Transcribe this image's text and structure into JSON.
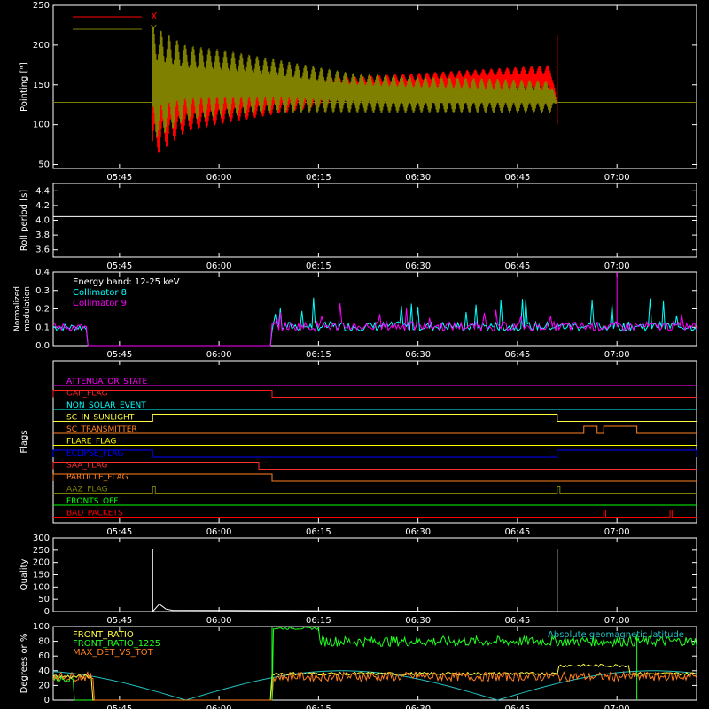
{
  "chart_data": [
    {
      "type": "line",
      "ylabel": "Pointing [\"]",
      "ylim": [
        45,
        250
      ],
      "yticks": [
        50,
        100,
        150,
        200,
        250
      ],
      "xlim": [
        "05:35",
        "07:12"
      ],
      "xticks": [
        "05:45",
        "06:00",
        "06:15",
        "06:30",
        "06:45",
        "07:00"
      ],
      "legend": "top-left",
      "series": [
        {
          "name": "X",
          "color": "#ff0000",
          "x": [
            "05:35",
            "05:50",
            "05:55",
            "06:00",
            "06:10",
            "06:20",
            "06:30",
            "06:40",
            "06:50",
            "06:51",
            "07:12"
          ],
          "low": [
            128,
            58,
            90,
            100,
            115,
            130,
            135,
            140,
            140,
            128,
            128
          ],
          "high": [
            128,
            200,
            170,
            165,
            160,
            160,
            165,
            170,
            175,
            128,
            128
          ]
        },
        {
          "name": "Y",
          "color": "#808000",
          "x": [
            "05:35",
            "05:50",
            "05:55",
            "06:00",
            "06:10",
            "06:20",
            "06:30",
            "06:40",
            "06:50",
            "06:51",
            "07:12"
          ],
          "low": [
            128,
            80,
            105,
            110,
            115,
            115,
            115,
            115,
            115,
            128,
            128
          ],
          "high": [
            128,
            225,
            200,
            195,
            180,
            165,
            160,
            158,
            155,
            128,
            128
          ]
        }
      ]
    },
    {
      "type": "line",
      "ylabel": "Roll period [s]",
      "ylim": [
        3.5,
        4.5
      ],
      "yticks": [
        "3.6",
        "3.8",
        "4.0",
        "4.2",
        "4.4"
      ],
      "xticks": [
        "05:45",
        "06:00",
        "06:15",
        "06:30",
        "06:45",
        "07:00"
      ],
      "series": [
        {
          "color": "#ffffff",
          "x": [
            "05:35",
            "07:12"
          ],
          "y": [
            4.05,
            4.05
          ]
        }
      ]
    },
    {
      "type": "line",
      "ylabel": "Normalized modulation",
      "ylim": [
        0,
        0.4
      ],
      "yticks": [
        "0.0",
        "0.1",
        "0.2",
        "0.3",
        "0.4"
      ],
      "xticks": [
        "05:45",
        "06:00",
        "06:15",
        "06:30",
        "06:45",
        "07:00"
      ],
      "annotation": "Energy band: 12-25 keV",
      "legend": "top-left",
      "series": [
        {
          "name": "Collimator 8",
          "color": "#00ffff",
          "level": 0.1,
          "gaps": [
            [
              "05:40",
              "06:08"
            ]
          ]
        },
        {
          "name": "Collimator 9",
          "color": "#ff00ff",
          "level": 0.1,
          "gaps": [
            [
              "05:40",
              "06:08"
            ]
          ]
        }
      ]
    },
    {
      "type": "line",
      "ylabel": "Flags",
      "xticks": [
        "05:45",
        "06:00",
        "06:15",
        "06:30",
        "06:45",
        "07:00"
      ],
      "flags": [
        {
          "name": "ATTENUATOR_STATE",
          "color": "#ff00ff",
          "segments": []
        },
        {
          "name": "GAP_FLAG",
          "color": "#ff2020",
          "segments": [
            [
              "05:35",
              "06:08"
            ]
          ]
        },
        {
          "name": "NON_SOLAR_EVENT",
          "color": "#00ffff",
          "segments": []
        },
        {
          "name": "SC_IN_SUNLIGHT",
          "color": "#ffff40",
          "segments": [
            [
              "05:50",
              "06:51"
            ]
          ]
        },
        {
          "name": "SC_TRANSMITTER",
          "color": "#ff8020",
          "segments": [
            [
              "06:55",
              "06:57"
            ],
            [
              "06:58",
              "07:03"
            ]
          ]
        },
        {
          "name": "FLARE_FLAG",
          "color": "#ffff00",
          "segments": []
        },
        {
          "name": "ECLIPSE_FLAG",
          "color": "#0000ff",
          "segments": [
            [
              "05:35",
              "05:50"
            ],
            [
              "06:51",
              "07:12"
            ]
          ]
        },
        {
          "name": "SAA_FLAG",
          "color": "#ff3030",
          "segments": [
            [
              "05:35",
              "06:06"
            ]
          ]
        },
        {
          "name": "PARTICLE_FLAG",
          "color": "#ff8020",
          "segments": [
            [
              "05:35",
              "06:08"
            ]
          ]
        },
        {
          "name": "AAZ_FLAG",
          "color": "#808000",
          "segments": [
            [
              "05:50",
              "05:50.4"
            ],
            [
              "06:51",
              "06:51.4"
            ]
          ]
        },
        {
          "name": "FRONTS_OFF",
          "color": "#00ff00",
          "segments": []
        },
        {
          "name": "BAD_PACKETS",
          "color": "#ff0000",
          "segments": [
            [
              "06:58",
              "06:58.3"
            ],
            [
              "07:08",
              "07:08.3"
            ]
          ]
        }
      ]
    },
    {
      "type": "line",
      "ylabel": "Quality",
      "ylim": [
        0,
        300
      ],
      "yticks": [
        0,
        50,
        100,
        150,
        200,
        250,
        300
      ],
      "xticks": [
        "05:45",
        "06:00",
        "06:15",
        "06:30",
        "06:45",
        "07:00"
      ],
      "series": [
        {
          "color": "#ffffff",
          "x": [
            "05:35",
            "05:50",
            "05:50",
            "05:51",
            "05:52",
            "05:53",
            "06:51",
            "06:51",
            "07:12"
          ],
          "y": [
            255,
            255,
            0,
            30,
            10,
            5,
            0,
            255,
            255
          ]
        }
      ]
    },
    {
      "type": "line",
      "ylabel": "Degrees or %",
      "ylim": [
        0,
        100
      ],
      "yticks": [
        0,
        20,
        40,
        60,
        80,
        100
      ],
      "xticks": [
        "05:45",
        "06:00",
        "06:15",
        "06:30",
        "06:45",
        "07:00"
      ],
      "legend": "top-left",
      "annotation": "Absolute geomagnetic latitude",
      "series": [
        {
          "name": "FRONT_RATIO",
          "color": "#ffff40"
        },
        {
          "name": "FRONT_RATIO_1225",
          "color": "#20ff20"
        },
        {
          "name": "MAX_DET_VS_TOT",
          "color": "#ff8020"
        },
        {
          "name": "",
          "color": "#20c0c0"
        }
      ]
    }
  ],
  "labels": {
    "legend_x": "X",
    "legend_y": "Y",
    "mod_band": "Energy band: 12-25 keV",
    "mod_c8": "Collimator 8",
    "mod_c9": "Collimator 9",
    "deg_l1": "FRONT_RATIO",
    "deg_l2": "FRONT_RATIO_1225",
    "deg_l3": "MAX_DET_VS_TOT",
    "deg_annot": "Absolute geomagnetic latitude"
  }
}
